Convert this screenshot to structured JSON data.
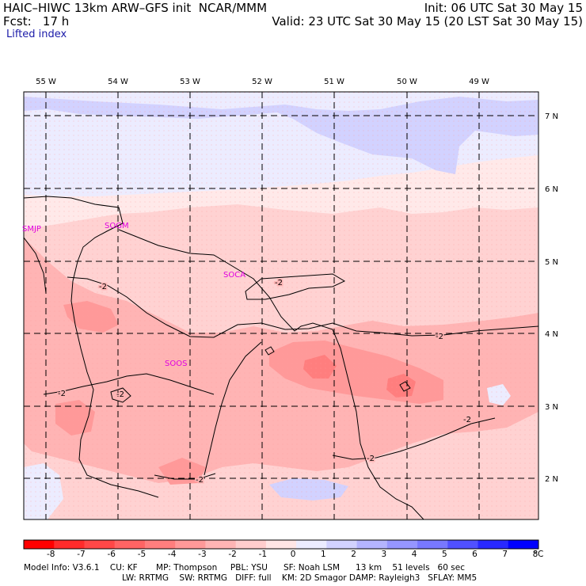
{
  "header": {
    "title": "HAIC–HIWC 13km ARW–GFS init  NCAR/MMM",
    "init": "Init: 06 UTC Sat 30 May 15",
    "fcst": "Fcst:   17 h",
    "valid": "Valid: 23 UTC Sat 30 May 15 (20 LST Sat 30 May 15)",
    "field": "Lifted index"
  },
  "map": {
    "lon_labels": [
      "55 W",
      "54 W",
      "53 W",
      "52 W",
      "51 W",
      "50 W",
      "49 W"
    ],
    "lat_labels": [
      "7 N",
      "6 N",
      "5 N",
      "4 N",
      "3 N",
      "2 N"
    ],
    "stations": [
      "SMJP",
      "SOGM",
      "SOCA",
      "SOOS"
    ],
    "contour_labels": [
      "-2",
      "-2",
      "-2",
      "-2",
      "-2",
      "-2",
      "-2",
      "-2"
    ]
  },
  "colorbar": {
    "ticks": [
      "-8",
      "-7",
      "-6",
      "-5",
      "-4",
      "-3",
      "-2",
      "-1",
      "0",
      "1",
      "2",
      "3",
      "4",
      "5",
      "6",
      "7",
      "8"
    ],
    "unit": "°C",
    "colors": [
      "#ff0000",
      "#ff2b2b",
      "#ff4747",
      "#ff6464",
      "#ff7e7e",
      "#ff9999",
      "#ffb4b4",
      "#ffcdcd",
      "#ffe6e6",
      "#ececff",
      "#d2d2ff",
      "#b4b4ff",
      "#9696ff",
      "#7878ff",
      "#5050ff",
      "#2828ff",
      "#0000ff"
    ]
  },
  "footer": {
    "line1": "Model Info: V3.6.1    CU: KF       MP: Thompson     PBL: YSU      SF: Noah LSM      13 km    51 levels   60 sec",
    "line2": "LW: RRTMG    SW: RRTMG   DIFF: full    KM: 2D Smagor DAMP: Rayleigh3   SFLAY: MM5"
  },
  "colors": {
    "station": "#e000e0",
    "title_blue": "#1a1aa8"
  }
}
